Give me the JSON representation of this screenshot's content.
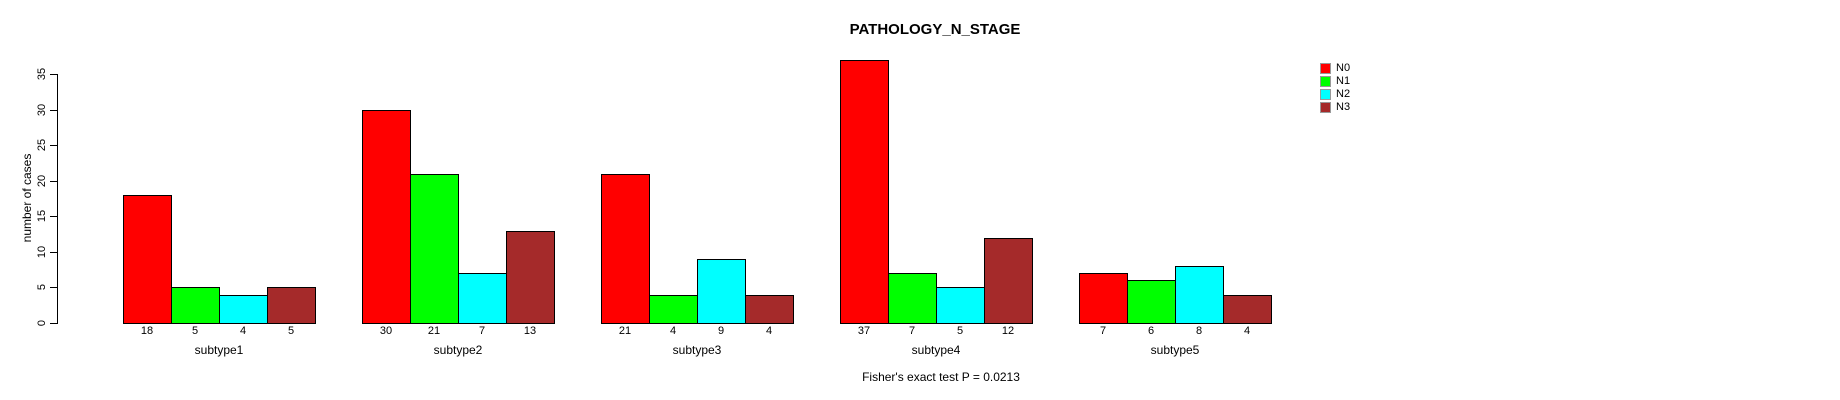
{
  "title": "PATHOLOGY_N_STAGE",
  "footer_note": "Fisher's exact test P = 0.0213",
  "y_axis": {
    "label": "number of cases",
    "ticks": [
      0,
      5,
      10,
      15,
      20,
      25,
      30,
      35
    ]
  },
  "legend": {
    "items": [
      {
        "label": "N0",
        "color": "#ff0000"
      },
      {
        "label": "N1",
        "color": "#00ff00"
      },
      {
        "label": "N2",
        "color": "#00ffff"
      },
      {
        "label": "N3",
        "color": "#a52a2a"
      }
    ]
  },
  "chart_data": {
    "type": "bar",
    "title": "PATHOLOGY_N_STAGE",
    "xlabel": "",
    "ylabel": "number of cases",
    "ylim": [
      0,
      37
    ],
    "yticks": [
      0,
      5,
      10,
      15,
      20,
      25,
      30,
      35
    ],
    "grid": false,
    "legend_position": "right",
    "bar_value_labels_shown": true,
    "categories": [
      "subtype1",
      "subtype2",
      "subtype3",
      "subtype4",
      "subtype5"
    ],
    "series": [
      {
        "name": "N0",
        "color": "#ff0000",
        "values": [
          18,
          30,
          21,
          37,
          7
        ]
      },
      {
        "name": "N1",
        "color": "#00ff00",
        "values": [
          5,
          21,
          4,
          7,
          6
        ]
      },
      {
        "name": "N2",
        "color": "#00ffff",
        "values": [
          4,
          7,
          9,
          5,
          8
        ]
      },
      {
        "name": "N3",
        "color": "#a52a2a",
        "values": [
          5,
          13,
          4,
          12,
          4
        ]
      }
    ],
    "annotation": "Fisher's exact test P = 0.0213"
  }
}
